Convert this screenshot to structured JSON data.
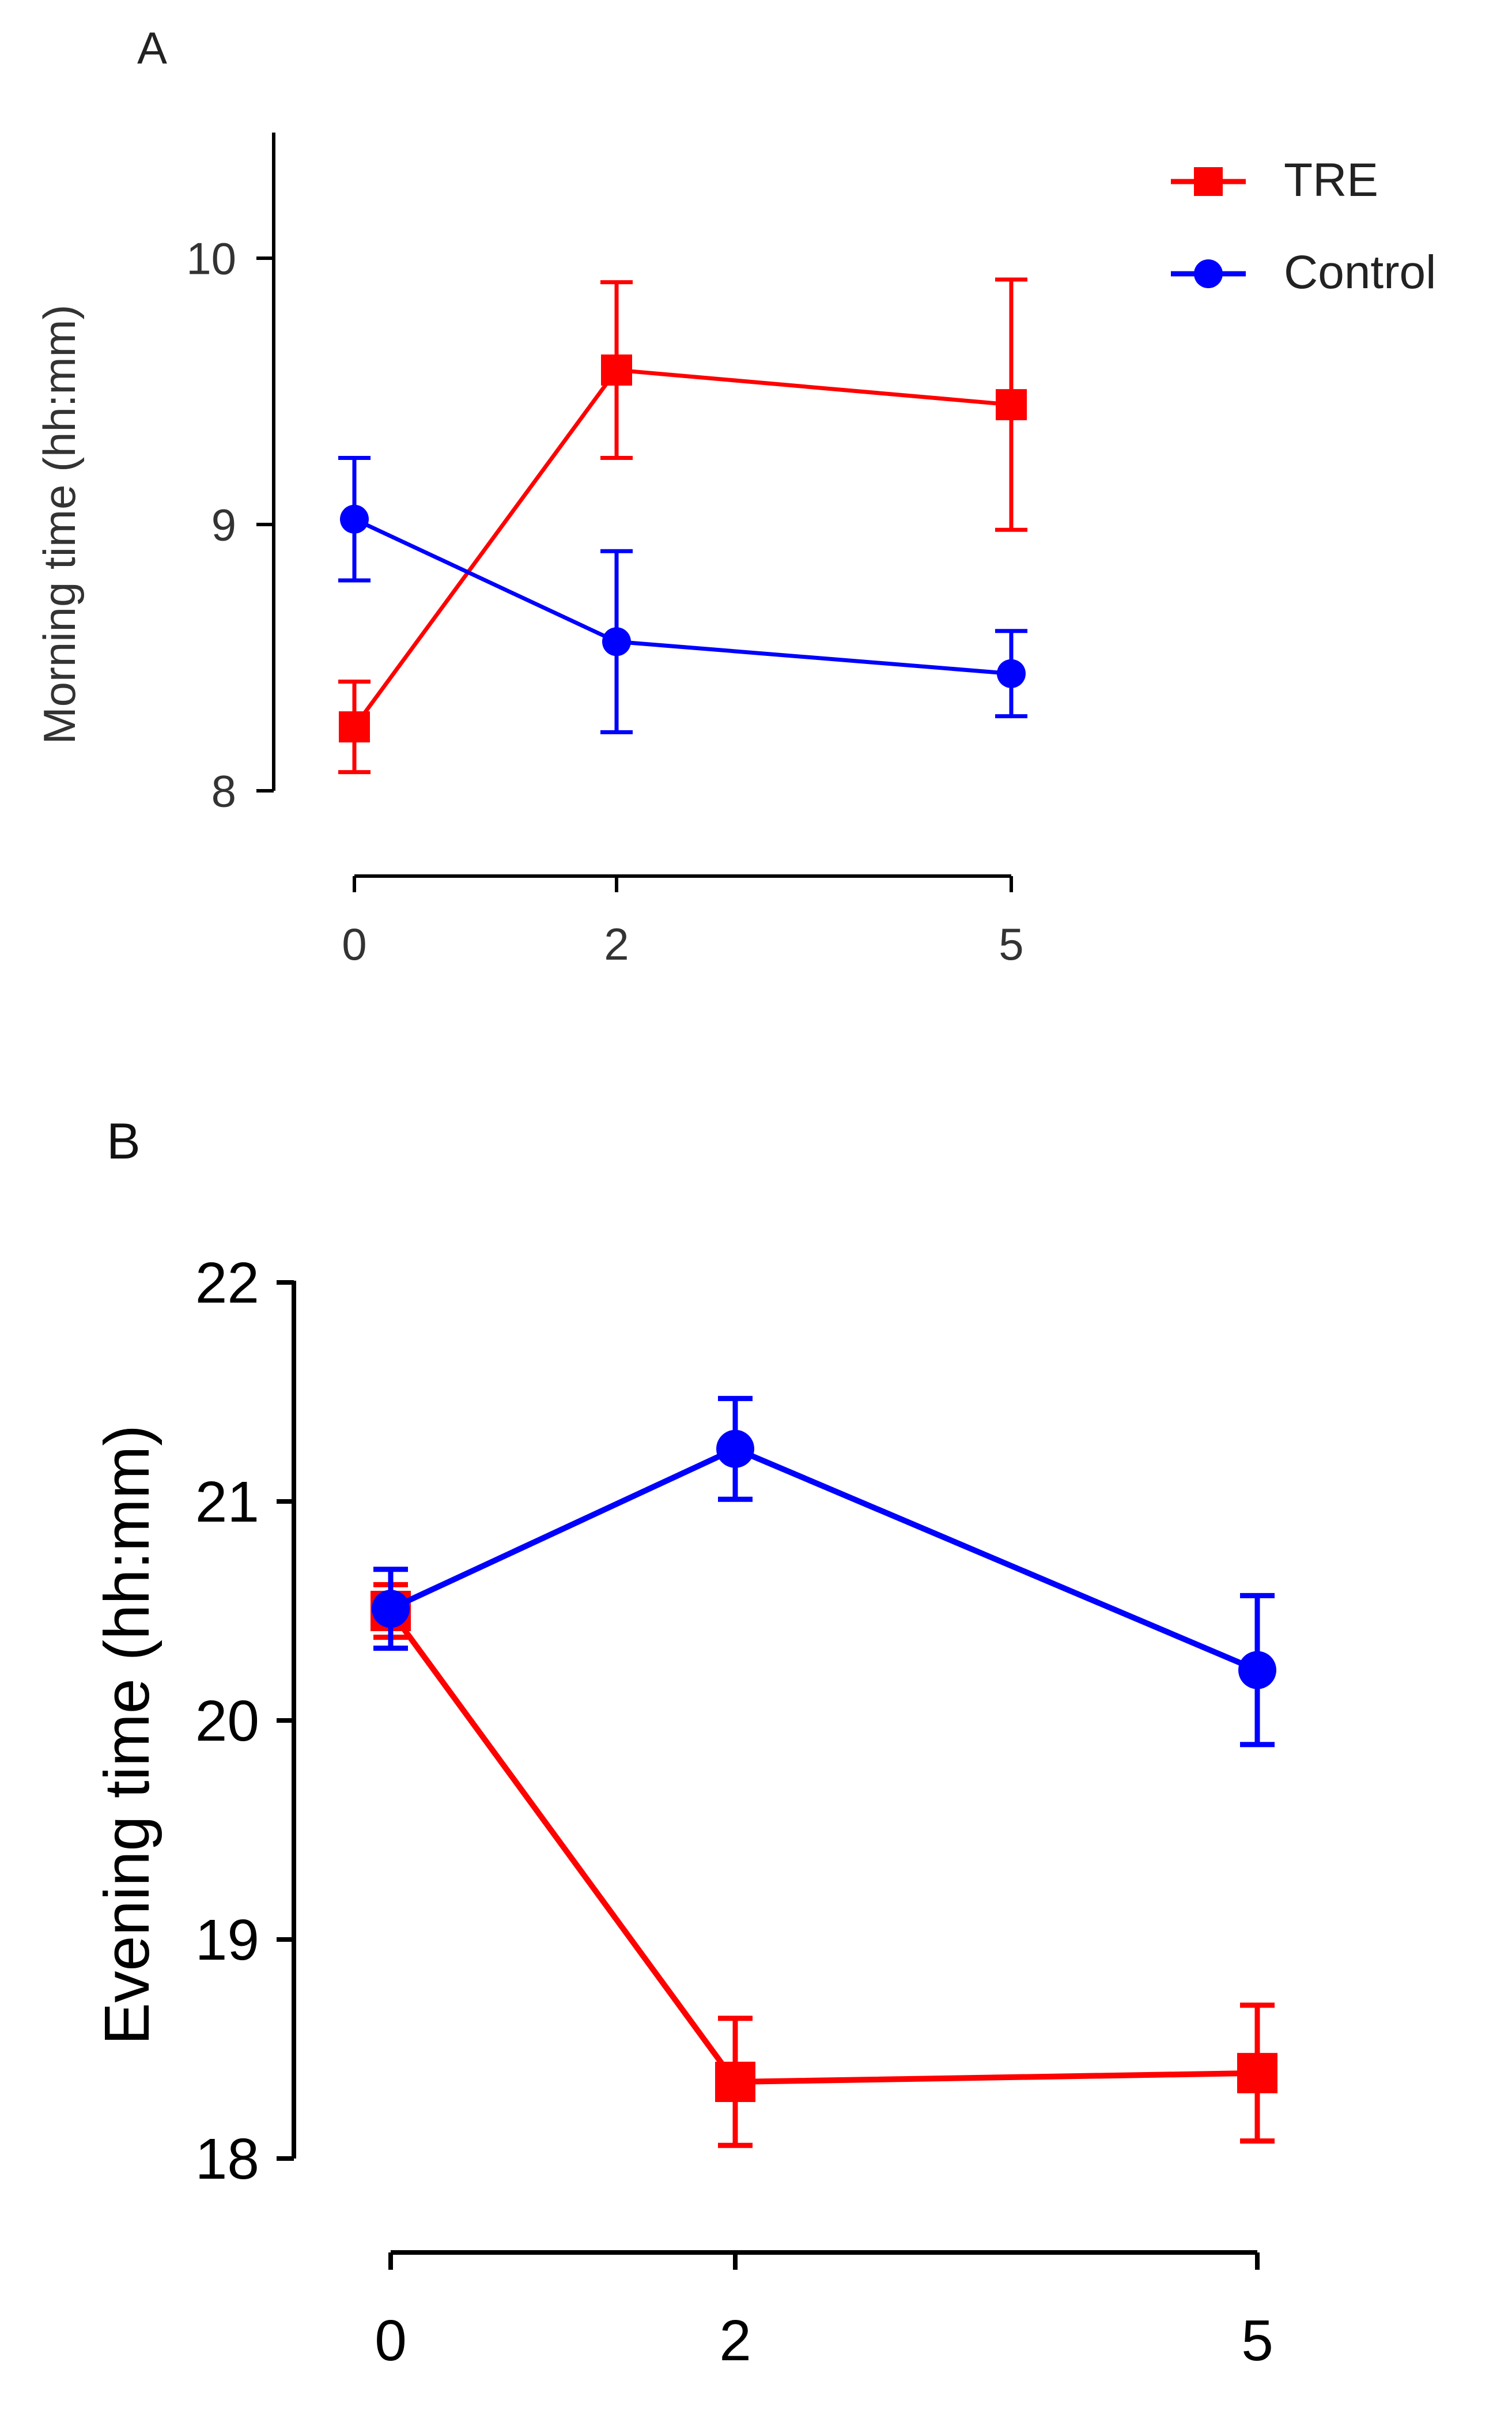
{
  "legend": {
    "placement": "top-right",
    "entries": [
      {
        "name": "TRE",
        "color": "#ff0000",
        "marker": "square"
      },
      {
        "name": "Control",
        "color": "#0000ff",
        "marker": "circle"
      }
    ]
  },
  "chart_data": [
    {
      "panel_label": "A",
      "type": "line",
      "title": "",
      "xlabel": "",
      "ylabel": "Morning time (hh:mm)",
      "categories": [
        "0",
        "2",
        "5"
      ],
      "x": [
        0,
        2,
        5
      ],
      "yticks": [
        "8",
        "9",
        "10"
      ],
      "ytick_values": [
        8,
        9,
        10
      ],
      "ylim": [
        8,
        10.5
      ],
      "grid": false,
      "series": [
        {
          "name": "TRE",
          "color": "#ff0000",
          "marker": "square",
          "values": [
            8.24,
            9.58,
            9.45
          ],
          "error": [
            0.17,
            0.33,
            0.47
          ]
        },
        {
          "name": "Control",
          "color": "#0000ff",
          "marker": "circle",
          "values": [
            9.02,
            8.56,
            8.44
          ],
          "error": [
            0.23,
            0.34,
            0.16
          ]
        }
      ]
    },
    {
      "panel_label": "B",
      "type": "line",
      "title": "",
      "xlabel": "",
      "ylabel": "Evening time (hh:mm)",
      "categories": [
        "0",
        "2",
        "5"
      ],
      "x": [
        0,
        2,
        5
      ],
      "yticks": [
        "18",
        "19",
        "20",
        "21",
        "22"
      ],
      "ytick_values": [
        18,
        19,
        20,
        21,
        22
      ],
      "ylim": [
        18,
        22
      ],
      "grid": false,
      "series": [
        {
          "name": "TRE",
          "color": "#ff0000",
          "marker": "square",
          "values": [
            20.5,
            18.35,
            18.39
          ],
          "error": [
            0.12,
            0.29,
            0.31
          ]
        },
        {
          "name": "Control",
          "color": "#0000ff",
          "marker": "circle",
          "values": [
            20.51,
            21.24,
            20.23
          ],
          "error": [
            0.18,
            0.23,
            0.34
          ]
        }
      ]
    }
  ]
}
